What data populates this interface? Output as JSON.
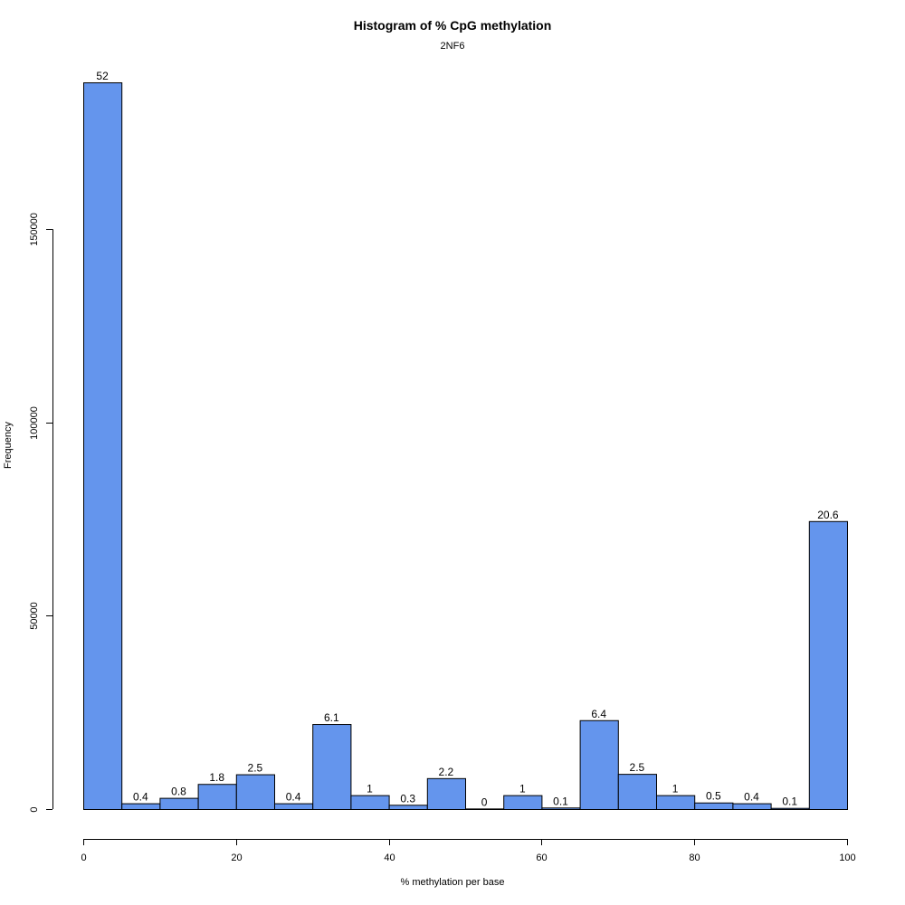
{
  "chart_data": {
    "type": "bar",
    "title": "Histogram of % CpG methylation",
    "subtitle": "2NF6",
    "xlabel": "% methylation per base",
    "ylabel": "Frequency",
    "bin_width": 5,
    "bins": [
      {
        "start": 0,
        "end": 5,
        "value": 188000,
        "label": "52"
      },
      {
        "start": 5,
        "end": 10,
        "value": 1500,
        "label": "0.4"
      },
      {
        "start": 10,
        "end": 15,
        "value": 2900,
        "label": "0.8"
      },
      {
        "start": 15,
        "end": 20,
        "value": 6500,
        "label": "1.8"
      },
      {
        "start": 20,
        "end": 25,
        "value": 9000,
        "label": "2.5"
      },
      {
        "start": 25,
        "end": 30,
        "value": 1500,
        "label": "0.4"
      },
      {
        "start": 30,
        "end": 35,
        "value": 22000,
        "label": "6.1"
      },
      {
        "start": 35,
        "end": 40,
        "value": 3600,
        "label": "1"
      },
      {
        "start": 40,
        "end": 45,
        "value": 1100,
        "label": "0.3"
      },
      {
        "start": 45,
        "end": 50,
        "value": 8000,
        "label": "2.2"
      },
      {
        "start": 50,
        "end": 55,
        "value": 150,
        "label": "0"
      },
      {
        "start": 55,
        "end": 60,
        "value": 3600,
        "label": "1"
      },
      {
        "start": 60,
        "end": 65,
        "value": 400,
        "label": "0.1"
      },
      {
        "start": 65,
        "end": 70,
        "value": 23000,
        "label": "6.4"
      },
      {
        "start": 70,
        "end": 75,
        "value": 9100,
        "label": "2.5"
      },
      {
        "start": 75,
        "end": 80,
        "value": 3600,
        "label": "1"
      },
      {
        "start": 80,
        "end": 85,
        "value": 1700,
        "label": "0.5"
      },
      {
        "start": 85,
        "end": 90,
        "value": 1500,
        "label": "0.4"
      },
      {
        "start": 90,
        "end": 95,
        "value": 300,
        "label": "0.1"
      },
      {
        "start": 95,
        "end": 100,
        "value": 74500,
        "label": "20.6"
      }
    ],
    "xlim": [
      0,
      100
    ],
    "ylim": [
      0,
      188000
    ],
    "x_ticks": [
      0,
      20,
      40,
      60,
      80,
      100
    ],
    "y_ticks": [
      0,
      50000,
      100000,
      150000
    ],
    "bar_color": "#6495ED",
    "border_color": "#000000",
    "grid": false
  }
}
